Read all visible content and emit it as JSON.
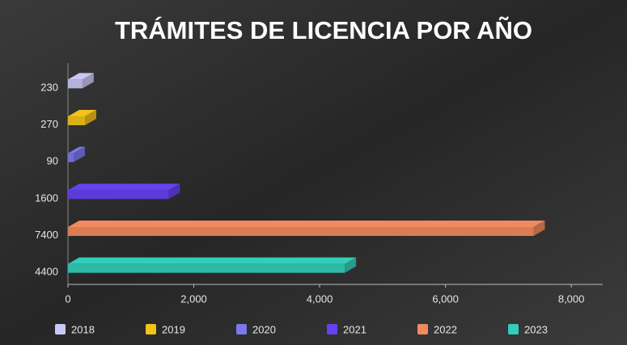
{
  "chart_data": {
    "type": "bar3d",
    "orientation": "horizontal",
    "title": "TRÁMITES DE LICENCIA POR AÑO",
    "series": [
      {
        "name": "2018",
        "color": "#c9c7f5",
        "values": [
          230
        ]
      },
      {
        "name": "2019",
        "color": "#f2c318",
        "values": [
          270
        ]
      },
      {
        "name": "2020",
        "color": "#7c78ee",
        "values": [
          90
        ]
      },
      {
        "name": "2021",
        "color": "#6541f2",
        "values": [
          1600
        ]
      },
      {
        "name": "2022",
        "color": "#f28a5e",
        "values": [
          7400
        ]
      },
      {
        "name": "2023",
        "color": "#33cdb9",
        "values": [
          4400
        ]
      }
    ],
    "xlim": [
      0,
      8500
    ],
    "xticks": [
      0,
      {
        "value": 2000,
        "label": "2,000"
      },
      {
        "value": 4000,
        "label": "4,000"
      },
      {
        "value": 6000,
        "label": "6,000"
      },
      {
        "value": 8000,
        "label": "8,000"
      }
    ],
    "legend": "bottom"
  }
}
